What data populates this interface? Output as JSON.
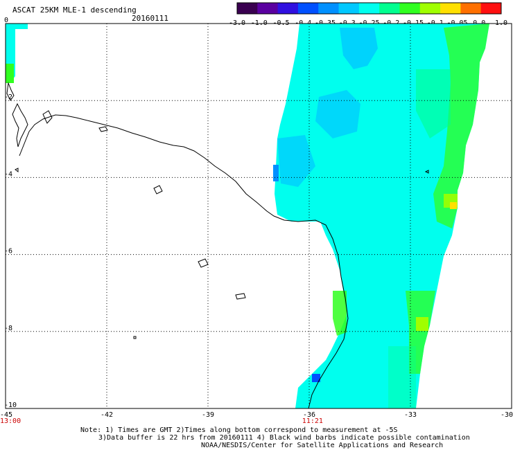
{
  "header": {
    "title": "ASCAT 25KM MLE-1 descending",
    "date": "20160111"
  },
  "colorbar": {
    "tick_labels": [
      "-3.0",
      "-1.0",
      "-0.5",
      "-0.4",
      "-0.35",
      "-0.3",
      "-0.25",
      "-0.2",
      "-0.15",
      "-0.1",
      "-0.05",
      "0.0",
      "1.0"
    ],
    "colors": [
      "#3a0050",
      "#5a00a0",
      "#3010e0",
      "#0050ff",
      "#0090ff",
      "#00c8ff",
      "#00ffee",
      "#00ff90",
      "#30ff20",
      "#a0ff00",
      "#ffe000",
      "#ff7000",
      "#ff1010"
    ]
  },
  "map": {
    "x_ticks": [
      "-45",
      "-42",
      "-39",
      "-36",
      "-33",
      "-30"
    ],
    "y_ticks": [
      "0",
      "-2",
      "-4",
      "-6",
      "-8",
      "-10"
    ],
    "time_labels": [
      {
        "text": "13:00",
        "lon": -45
      },
      {
        "text": "11:21",
        "lon": -35.9
      }
    ],
    "lon_range": [
      -45,
      -30
    ],
    "lat_range": [
      -10,
      0
    ],
    "colors": {
      "land_line": "#000000",
      "grid": "#000000",
      "time_label": "#cc0000"
    }
  },
  "notes": {
    "line1": "Note: 1) Times are GMT 2)Times along bottom correspond to measurement at -5S",
    "line2": "3)Data buffer is 22 hrs from 20160111 4) Black wind barbs indicate possible contamination",
    "line3": "NOAA/NESDIS/Center for Satellite Applications and Research"
  }
}
